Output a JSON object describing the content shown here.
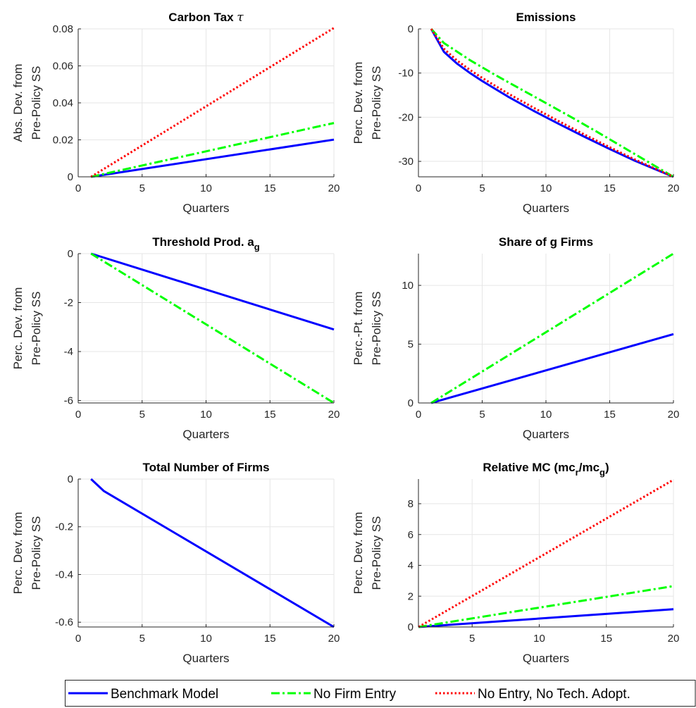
{
  "chart_data": [
    {
      "type": "line",
      "title": "Carbon Tax",
      "title_symbol": "τ",
      "xlabel": "Quarters",
      "ylabel": [
        "Abs. Dev. from",
        "Pre-Policy SS"
      ],
      "xlim": [
        0,
        20
      ],
      "ylim": [
        0,
        0.08
      ],
      "xticks": [
        0,
        5,
        10,
        15,
        20
      ],
      "xtick_labels": [
        "0",
        "5",
        "10",
        "15",
        "20"
      ],
      "yticks": [
        0,
        0.02,
        0.04,
        0.06,
        0.08
      ],
      "ytick_labels": [
        "0",
        "0.02",
        "0.04",
        "0.06",
        "0.08"
      ],
      "grid": true,
      "series": [
        {
          "name": "Benchmark Model",
          "x": [
            1,
            20
          ],
          "y": [
            0,
            0.0201
          ]
        },
        {
          "name": "No Firm Entry",
          "x": [
            1,
            20
          ],
          "y": [
            0,
            0.0291
          ]
        },
        {
          "name": "No Entry, No Tech. Adopt.",
          "x": [
            1,
            20
          ],
          "y": [
            0,
            0.0805
          ]
        }
      ]
    },
    {
      "type": "line",
      "title": "Emissions",
      "xlabel": "Quarters",
      "ylabel": [
        "Perc. Dev. from",
        "Pre-Policy SS"
      ],
      "xlim": [
        0,
        20
      ],
      "ylim": [
        -33.5,
        0
      ],
      "xticks": [
        0,
        5,
        10,
        15,
        20
      ],
      "xtick_labels": [
        "0",
        "5",
        "10",
        "15",
        "20"
      ],
      "yticks": [
        -30,
        -20,
        -10,
        0
      ],
      "ytick_labels": [
        "-30",
        "-20",
        "-10",
        "0"
      ],
      "grid": true,
      "series": [
        {
          "name": "Benchmark Model",
          "x": [
            1,
            2,
            3,
            4,
            5,
            7,
            9,
            11,
            13,
            15,
            17,
            19,
            20
          ],
          "y": [
            0,
            -5.2,
            -7.8,
            -9.9,
            -11.8,
            -15.3,
            -18.5,
            -21.5,
            -24.4,
            -27.2,
            -29.9,
            -32.3,
            -33.5
          ]
        },
        {
          "name": "No Firm Entry",
          "x": [
            1,
            2,
            4,
            6,
            8,
            10,
            12,
            14,
            16,
            18,
            20
          ],
          "y": [
            0,
            -3.2,
            -7.0,
            -10.4,
            -13.6,
            -16.8,
            -20.0,
            -23.3,
            -26.7,
            -30.1,
            -33.5
          ]
        },
        {
          "name": "No Entry, No Tech. Adopt.",
          "x": [
            1,
            2,
            3,
            4,
            5,
            7,
            9,
            11,
            13,
            15,
            17,
            19,
            20
          ],
          "y": [
            0,
            -4.5,
            -7.1,
            -9.2,
            -11.1,
            -14.6,
            -17.8,
            -20.9,
            -23.9,
            -26.8,
            -29.6,
            -32.2,
            -33.5
          ]
        }
      ]
    },
    {
      "type": "line",
      "title": "Threshold Prod. a",
      "title_sub": "g",
      "xlabel": "Quarters",
      "ylabel": [
        "Perc. Dev. from",
        "Pre-Policy SS"
      ],
      "xlim": [
        0,
        20
      ],
      "ylim": [
        -6.1,
        0
      ],
      "xticks": [
        0,
        5,
        10,
        15,
        20
      ],
      "xtick_labels": [
        "0",
        "5",
        "10",
        "15",
        "20"
      ],
      "yticks": [
        -6,
        -4,
        -2,
        0
      ],
      "ytick_labels": [
        "-6",
        "-4",
        "-2",
        "0"
      ],
      "grid": true,
      "series": [
        {
          "name": "Benchmark Model",
          "x": [
            1,
            20
          ],
          "y": [
            0,
            -3.1
          ]
        },
        {
          "name": "No Firm Entry",
          "x": [
            1,
            20
          ],
          "y": [
            0,
            -6.1
          ]
        }
      ]
    },
    {
      "type": "line",
      "title": "Share of g Firms",
      "xlabel": "Quarters",
      "ylabel": [
        "Perc.-Pt. from",
        "Pre-Policy SS"
      ],
      "xlim": [
        0,
        20
      ],
      "ylim": [
        0,
        12.7
      ],
      "xticks": [
        0,
        5,
        10,
        15,
        20
      ],
      "xtick_labels": [
        "0",
        "5",
        "10",
        "15",
        "20"
      ],
      "yticks": [
        0,
        5,
        10
      ],
      "ytick_labels": [
        "0",
        "5",
        "10"
      ],
      "grid": true,
      "series": [
        {
          "name": "Benchmark Model",
          "x": [
            1,
            20
          ],
          "y": [
            0,
            5.85
          ]
        },
        {
          "name": "No Firm Entry",
          "x": [
            1,
            20
          ],
          "y": [
            0,
            12.7
          ]
        }
      ]
    },
    {
      "type": "line",
      "title": "Total Number of Firms",
      "xlabel": "Quarters",
      "ylabel": [
        "Perc. Dev. from",
        "Pre-Policy SS"
      ],
      "xlim": [
        0,
        20
      ],
      "ylim": [
        -0.62,
        0
      ],
      "xticks": [
        0,
        5,
        10,
        15,
        20
      ],
      "xtick_labels": [
        "0",
        "5",
        "10",
        "15",
        "20"
      ],
      "yticks": [
        -0.6,
        -0.4,
        -0.2,
        0
      ],
      "ytick_labels": [
        "-0.6",
        "-0.4",
        "-0.2",
        "0"
      ],
      "grid": true,
      "series": [
        {
          "name": "Benchmark Model",
          "x": [
            1,
            2,
            20
          ],
          "y": [
            0,
            -0.05,
            -0.62
          ]
        }
      ]
    },
    {
      "type": "line",
      "title": "Relative MC (mc",
      "title_sub1": "r",
      "title_mid": "/mc",
      "title_sub2": "g",
      "title_end": ")",
      "xlabel": "Quarters",
      "ylabel": [
        "Perc. Dev. from",
        "Pre-Policy SS"
      ],
      "xlim": [
        1,
        20
      ],
      "ylim": [
        0,
        9.6
      ],
      "xticks": [
        5,
        10,
        15,
        20
      ],
      "xtick_labels": [
        "5",
        "10",
        "15",
        "20"
      ],
      "yticks": [
        0,
        2,
        4,
        6,
        8
      ],
      "ytick_labels": [
        "0",
        "2",
        "4",
        "6",
        "8"
      ],
      "grid": true,
      "series": [
        {
          "name": "Benchmark Model",
          "x": [
            1,
            20
          ],
          "y": [
            0,
            1.15
          ]
        },
        {
          "name": "No Firm Entry",
          "x": [
            1,
            20
          ],
          "y": [
            0,
            2.65
          ]
        },
        {
          "name": "No Entry, No Tech. Adopt.",
          "x": [
            1,
            20
          ],
          "y": [
            0,
            9.55
          ]
        }
      ]
    }
  ],
  "legend": {
    "placement": "bottom-center",
    "entries": [
      {
        "label": "Benchmark Model",
        "color": "#0000ff",
        "style": "solid"
      },
      {
        "label": "No Firm Entry",
        "color": "#00ff00",
        "style": "dashdot"
      },
      {
        "label": "No Entry, No Tech. Adopt.",
        "color": "#ff0000",
        "style": "dotted"
      }
    ]
  },
  "series_styles": {
    "Benchmark Model": {
      "color": "#0000ff",
      "dash": ""
    },
    "No Firm Entry": {
      "color": "#00ff00",
      "dash": "12 4 3 4"
    },
    "No Entry, No Tech. Adopt.": {
      "color": "#ff0000",
      "dash": "2.5 3"
    }
  }
}
